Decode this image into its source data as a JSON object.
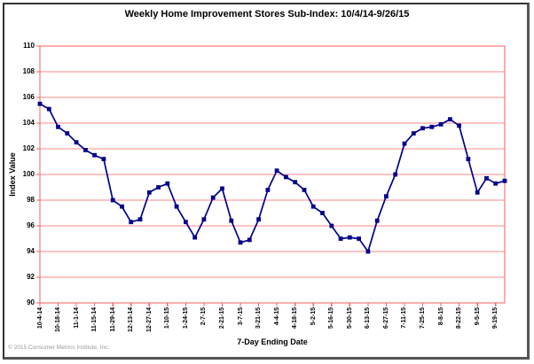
{
  "chart_data": {
    "type": "line",
    "title": "Weekly Home Improvement Stores Sub-Index: 10/4/14-9/26/15",
    "xlabel": "7-Day Ending Date",
    "ylabel": "Index Value",
    "ylim": [
      90,
      110
    ],
    "ytick_step": 2,
    "grid": true,
    "legend": "none",
    "label_every": 2,
    "x_tick_labels": [
      "10-4-14",
      "10-18-14",
      "11-1-14",
      "11-15-14",
      "11-29-14",
      "12-13-14",
      "12-27-14",
      "1-10-15",
      "1-24-15",
      "2-7-15",
      "2-21-15",
      "3-7-15",
      "3-21-15",
      "4-4-15",
      "4-18-15",
      "5-2-15",
      "5-16-15",
      "5-30-15",
      "6-13-15",
      "6-27-15",
      "7-11-15",
      "7-25-15",
      "8-8-15",
      "8-22-15",
      "9-5-15",
      "9-19-15"
    ],
    "values": [
      105.5,
      105.1,
      103.7,
      103.2,
      102.5,
      101.9,
      101.5,
      101.2,
      98.0,
      97.5,
      96.3,
      96.5,
      98.6,
      99.0,
      99.3,
      97.5,
      96.3,
      95.1,
      96.5,
      98.2,
      98.9,
      96.4,
      94.7,
      94.9,
      96.5,
      98.8,
      100.3,
      99.8,
      99.4,
      98.8,
      97.5,
      97.0,
      96.0,
      95.0,
      95.1,
      95.0,
      94.0,
      96.4,
      98.3,
      100.0,
      102.4,
      103.2,
      103.6,
      103.7,
      103.9,
      104.3,
      103.8,
      101.2,
      98.6,
      99.7,
      99.3,
      99.5
    ],
    "colors": {
      "series_line": "#00008B",
      "marker": "#00008B",
      "gridline": "#ff8a8a",
      "plot_border": "#ff5c5c",
      "title_text": "#000000",
      "copyright_text": "#999999"
    }
  },
  "footer": {
    "copyright": "© 2015 Consumer Metrics Institute, Inc."
  }
}
